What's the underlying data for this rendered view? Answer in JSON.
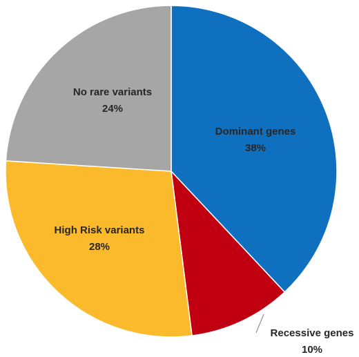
{
  "chart_data": {
    "type": "pie",
    "slices": [
      {
        "name": "Dominant genes",
        "value": 38,
        "label": "38%",
        "color": "#1070C0"
      },
      {
        "name": "Recessive genes",
        "value": 10,
        "label": "10%",
        "color": "#C00010"
      },
      {
        "name": "High Risk variants",
        "value": 28,
        "label": "28%",
        "color": "#FBBA2C"
      },
      {
        "name": "No rare variants",
        "value": 24,
        "label": "24%",
        "color": "#A6A6A6"
      }
    ],
    "start_angle": "12 o'clock",
    "direction": "clockwise",
    "legend": "none"
  }
}
